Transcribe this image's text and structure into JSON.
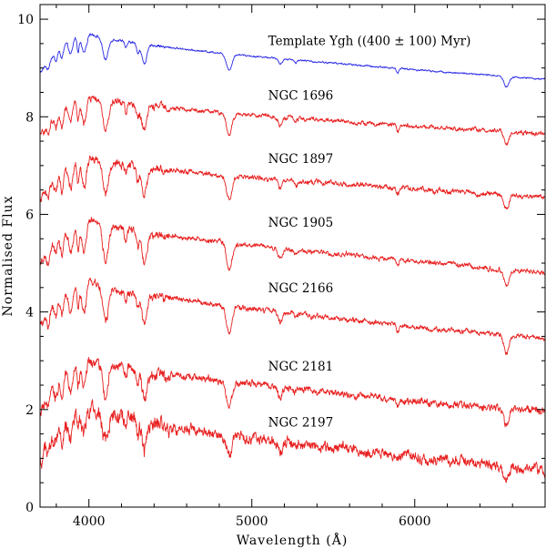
{
  "chart_data": {
    "type": "line",
    "xlabel": "Wavelength (Å)",
    "ylabel": "Normalised Flux",
    "xlim": [
      3700,
      6800
    ],
    "ylim": [
      0,
      10.3
    ],
    "x_ticks": [
      4000,
      5000,
      6000
    ],
    "x_tick_labels": [
      "4000",
      "5000",
      "6000"
    ],
    "y_ticks": [
      0,
      2,
      4,
      6,
      8,
      10
    ],
    "y_tick_labels": [
      "0",
      "2",
      "4",
      "6",
      "8",
      "10"
    ],
    "grid": false,
    "legend": "none",
    "colors": {
      "template": "#2a2ae6",
      "cluster": "#e82020"
    },
    "series": [
      {
        "name": "Template Ygh ((400 ± 100) Myr)",
        "color": "#2a2ae6",
        "offset": 8.73,
        "start": 8.9,
        "peak": 9.75,
        "end": 8.77,
        "noise": 0.025,
        "absorption_depth": 0.6,
        "label_at": [
          5100,
          9.47
        ]
      },
      {
        "name": "NGC 1696",
        "color": "#e82020",
        "offset": 7.45,
        "start": 7.6,
        "peak": 8.45,
        "end": 7.65,
        "noise": 0.06,
        "absorption_depth": 0.8,
        "label_at": [
          5100,
          8.35
        ]
      },
      {
        "name": "NGC 1897",
        "color": "#e82020",
        "offset": 5.9,
        "start": 6.3,
        "peak": 7.2,
        "end": 6.35,
        "noise": 0.07,
        "absorption_depth": 0.9,
        "label_at": [
          5100,
          7.05
        ]
      },
      {
        "name": "NGC 1905",
        "color": "#e82020",
        "offset": 4.7,
        "start": 5.0,
        "peak": 5.95,
        "end": 4.8,
        "noise": 0.07,
        "absorption_depth": 1.0,
        "label_at": [
          5100,
          5.75
        ]
      },
      {
        "name": "NGC 2166",
        "color": "#e82020",
        "offset": 3.4,
        "start": 3.7,
        "peak": 4.7,
        "end": 3.45,
        "noise": 0.07,
        "absorption_depth": 1.0,
        "label_at": [
          5100,
          4.4
        ]
      },
      {
        "name": "NGC 2181",
        "color": "#e82020",
        "offset": 1.6,
        "start": 1.9,
        "peak": 3.1,
        "end": 1.95,
        "noise": 0.1,
        "absorption_depth": 0.9,
        "label_at": [
          5100,
          2.8
        ]
      },
      {
        "name": "NGC 2197",
        "color": "#e82020",
        "offset": 0.3,
        "start": 0.9,
        "peak": 2.1,
        "end": 0.75,
        "noise": 0.15,
        "absorption_depth": 0.8,
        "label_at": [
          5100,
          1.65
        ]
      }
    ]
  }
}
